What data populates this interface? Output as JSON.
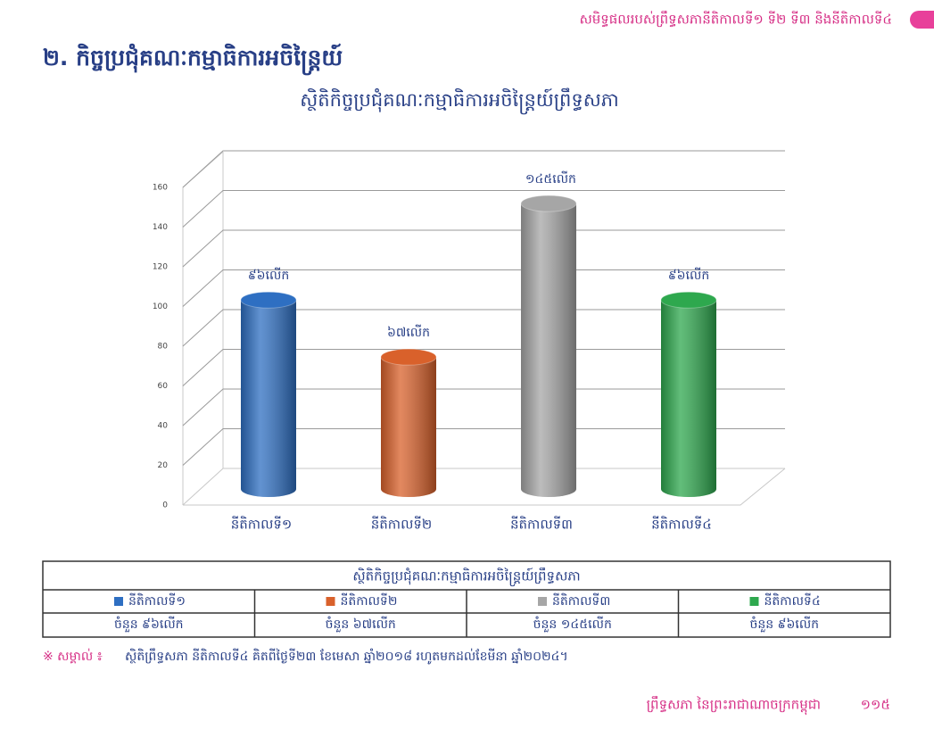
{
  "header": {
    "text": "សមិទ្ធផលរបស់ព្រឹទ្ធសភានីតិកាលទី១ ទី២ ទី៣ និងនីតិកាលទី៤"
  },
  "section": {
    "title": "២. កិច្ចប្រជុំគណៈកម្មាធិការអចិន្ត្រៃយ៍"
  },
  "chart_data": {
    "type": "bar",
    "title": "ស្ថិតិកិច្ចប្រជុំគណៈកម្មាធិការអចិន្ត្រៃយ៍ព្រឹទ្ធសភា",
    "categories": [
      "នីតិកាលទី១",
      "នីតិកាលទី២",
      "នីតិកាលទី៣",
      "នីតិកាលទី៤"
    ],
    "values": [
      96,
      67,
      145,
      96
    ],
    "value_labels": [
      "៩៦លើក",
      "៦៧លើក",
      "១៤៥លើក",
      "៩៦លើក"
    ],
    "colors": [
      "#2e6fc2",
      "#d9612b",
      "#a6a6a6",
      "#2ea84e"
    ],
    "ylim": [
      0,
      160
    ],
    "yticks": [
      0,
      20,
      40,
      60,
      80,
      100,
      120,
      140,
      160
    ],
    "grid": true
  },
  "table": {
    "counts": [
      "ចំនួន ៩៦លើក",
      "ចំនួន ៦៧លើក",
      "ចំនួន ១៤៥លើក",
      "ចំនួន ៩៦លើក"
    ]
  },
  "note": {
    "mark": "※ សម្គាល់ ៖",
    "text": "ស្ថិតិព្រឹទ្ធសភា នីតិកាលទី៤ គិតពីថ្ងៃទី២៣ ខែមេសា ឆ្នាំ២០១៨ រហូតមកដល់ខែមីនា ឆ្នាំ២០២៤។"
  },
  "footer": {
    "text": "ព្រឹទ្ធសភា នៃព្រះរាជាណាចក្រកម្ពុជា",
    "page": "១១៥"
  }
}
